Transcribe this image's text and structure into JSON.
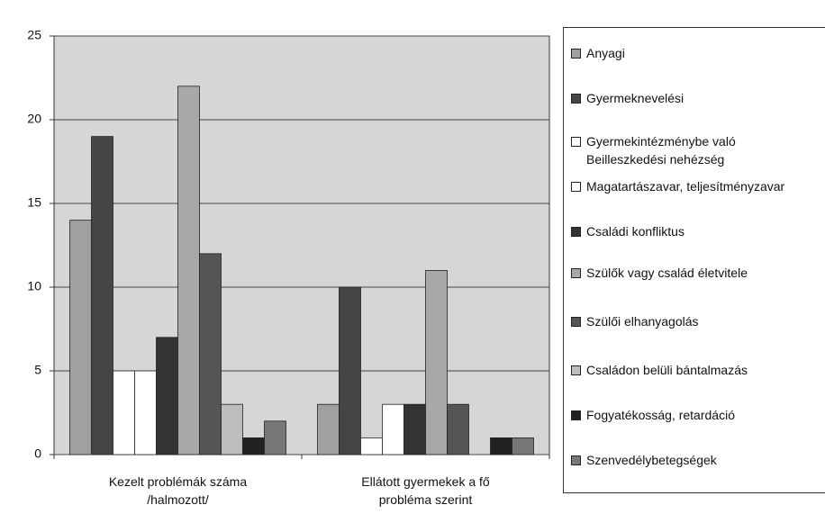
{
  "chart_data": {
    "type": "bar",
    "categories": [
      "Kezelt problémák száma\n/halmozott/",
      "Ellátott gyermekek a fő\nprobléma szerint"
    ],
    "series": [
      {
        "name": "Anyagi",
        "color": "#a0a0a0",
        "values": [
          14,
          3
        ]
      },
      {
        "name": "Gyermeknevelési",
        "color": "#454545",
        "values": [
          19,
          10
        ]
      },
      {
        "name": "Gyermekintézménybe való\nBeilleszkedési nehézség",
        "color": "#ffffff",
        "values": [
          5,
          1
        ]
      },
      {
        "name": "Magatartászavar, teljesítményzavar",
        "color": "#ffffff",
        "values": [
          5,
          3
        ]
      },
      {
        "name": "Családi konfliktus",
        "color": "#333333",
        "values": [
          7,
          3
        ]
      },
      {
        "name": "Szülők vagy család életvitele",
        "color": "#a8a8a8",
        "values": [
          22,
          11
        ]
      },
      {
        "name": "Szülői elhanyagolás",
        "color": "#555555",
        "values": [
          12,
          3
        ]
      },
      {
        "name": "Családon belüli bántalmazás",
        "color": "#bdbdbd",
        "values": [
          3,
          0
        ]
      },
      {
        "name": "Fogyatékosság, retardáció",
        "color": "#222222",
        "values": [
          1,
          1
        ]
      },
      {
        "name": "Szenvedélybetegségek",
        "color": "#777777",
        "values": [
          2,
          1
        ]
      }
    ],
    "ylim": [
      0,
      25
    ],
    "yticks": [
      0,
      5,
      10,
      15,
      20,
      25
    ],
    "grid": true,
    "legend": "right"
  }
}
